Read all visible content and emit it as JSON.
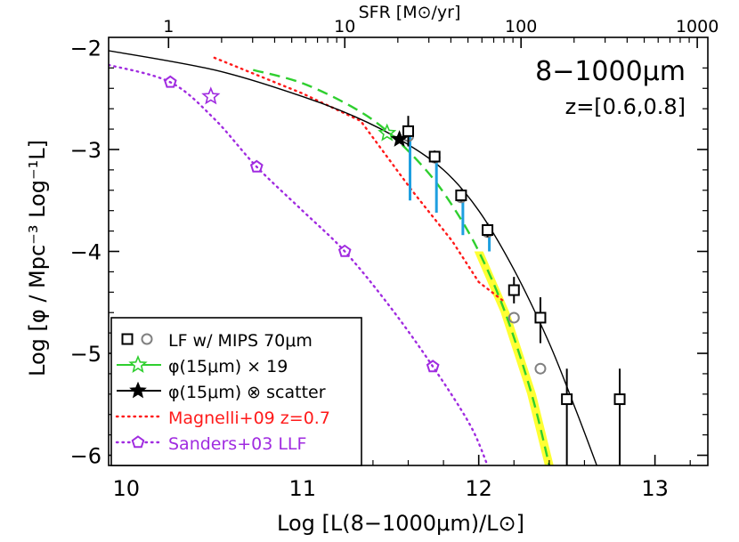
{
  "chart_data": {
    "type": "line",
    "title": "8−1000μm",
    "subtitle": "z=[0.6,0.8]",
    "xlabel": "Log [L(8−1000μm)/L⊙]",
    "ylabel": "Log [φ / Mpc⁻³ Log⁻¹L]",
    "x2label": "SFR [M⊙/yr]",
    "xlim": [
      9.9,
      13.3
    ],
    "ylim": [
      -6.1,
      -1.9
    ],
    "xticks": [
      10,
      11,
      12,
      13
    ],
    "xtick_labels": [
      "10",
      "11",
      "12",
      "13"
    ],
    "yticks": [
      -2,
      -3,
      -4,
      -5,
      -6
    ],
    "ytick_labels": [
      "−2",
      "−3",
      "−4",
      "−5",
      "−6"
    ],
    "x2ticks": [
      {
        "x": 10.24,
        "label": "1"
      },
      {
        "x": 11.24,
        "label": "10"
      },
      {
        "x": 12.24,
        "label": "100"
      },
      {
        "x": 13.24,
        "label": "1000"
      }
    ],
    "legend_position": "bottom-left",
    "colors": {
      "black": "#000000",
      "grey": "#808080",
      "cyan": "#1e9fe0",
      "green": "#2fcf2f",
      "yellow": "#ffff33",
      "red": "#ff1a1a",
      "purple": "#a02be0"
    },
    "series": [
      {
        "key": "mips_lf",
        "name": "LF w/ MIPS 70μm",
        "marker": "open-square",
        "color": "#000000",
        "points": [
          {
            "x": 11.6,
            "y": -2.82,
            "err_up": 0.15,
            "err_down": 0.15
          },
          {
            "x": 11.75,
            "y": -3.07,
            "err_up": 0.06,
            "err_down": 0.06
          },
          {
            "x": 11.9,
            "y": -3.45,
            "err_up": 0.06,
            "err_down": 0.06
          },
          {
            "x": 12.05,
            "y": -3.79,
            "err_up": 0.07,
            "err_down": 0.07
          },
          {
            "x": 12.2,
            "y": -4.38,
            "err_up": 0.13,
            "err_down": 0.13
          },
          {
            "x": 12.35,
            "y": -4.65,
            "err_up": 0.2,
            "err_down": 0.25
          },
          {
            "x": 12.5,
            "y": -5.45,
            "err_up": 0.3,
            "err_down": 0.7
          },
          {
            "x": 12.8,
            "y": -5.45,
            "err_up": 0.3,
            "err_down": 0.7
          }
        ]
      },
      {
        "key": "mips_grey",
        "name": "",
        "marker": "open-circle",
        "color": "#808080",
        "points": [
          {
            "x": 11.6,
            "y": -2.87
          },
          {
            "x": 11.75,
            "y": -3.08
          },
          {
            "x": 11.9,
            "y": -3.47
          },
          {
            "x": 12.05,
            "y": -3.81
          },
          {
            "x": 12.2,
            "y": -4.65
          },
          {
            "x": 12.35,
            "y": -5.15
          }
        ]
      },
      {
        "key": "scatter_err",
        "name": "",
        "marker": "none",
        "color": "#1e9fe0",
        "segments": [
          {
            "x": 11.6,
            "y_top": -2.85,
            "y_bottom": -3.5
          },
          {
            "x": 11.75,
            "y_top": -3.07,
            "y_bottom": -3.62
          },
          {
            "x": 11.9,
            "y_top": -3.45,
            "y_bottom": -3.84
          },
          {
            "x": 12.05,
            "y_top": -3.79,
            "y_bottom": -4.0
          }
        ]
      },
      {
        "key": "phi15",
        "name": "φ(15μm) × 19",
        "marker": "open-star",
        "color": "#2fcf2f",
        "points": [
          {
            "x": 11.48,
            "y": -2.84
          }
        ]
      },
      {
        "key": "phi15_scatter",
        "name": "φ(15μm) ⊗ scatter",
        "marker": "filled-star",
        "color": "#000000",
        "points": [
          {
            "x": 11.55,
            "y": -2.9
          }
        ]
      },
      {
        "key": "magnelli",
        "name": "Magnelli+09 z=0.7",
        "line": "dotted",
        "color": "#ff1a1a",
        "points": [
          {
            "x": 10.5,
            "y": -2.1
          },
          {
            "x": 11.0,
            "y": -2.45
          },
          {
            "x": 11.33,
            "y": -2.72
          },
          {
            "x": 11.62,
            "y": -3.4
          },
          {
            "x": 11.85,
            "y": -3.9
          },
          {
            "x": 12.0,
            "y": -4.3
          },
          {
            "x": 12.15,
            "y": -4.5
          }
        ]
      },
      {
        "key": "sanders",
        "name": "Sanders+03 LLF",
        "marker": "open-pentagon",
        "line": "dotted",
        "color": "#a02be0",
        "points": [
          {
            "x": 10.25,
            "y": -2.34
          },
          {
            "x": 10.74,
            "y": -3.17
          },
          {
            "x": 11.24,
            "y": -4.0
          },
          {
            "x": 11.74,
            "y": -5.13
          }
        ],
        "curve": [
          {
            "x": 9.9,
            "y": -2.17
          },
          {
            "x": 10.25,
            "y": -2.34
          },
          {
            "x": 10.5,
            "y": -2.7
          },
          {
            "x": 10.74,
            "y": -3.17
          },
          {
            "x": 11.0,
            "y": -3.6
          },
          {
            "x": 11.24,
            "y": -4.0
          },
          {
            "x": 11.5,
            "y": -4.55
          },
          {
            "x": 11.74,
            "y": -5.13
          },
          {
            "x": 11.95,
            "y": -5.7
          },
          {
            "x": 12.05,
            "y": -6.1
          }
        ]
      },
      {
        "key": "sanders_star",
        "name": "",
        "marker": "open-star",
        "color": "#a02be0",
        "points": [
          {
            "x": 10.48,
            "y": -2.48
          }
        ]
      },
      {
        "key": "fit_black",
        "name": "",
        "line": "solid",
        "color": "#000000",
        "curve": [
          {
            "x": 9.9,
            "y": -2.03
          },
          {
            "x": 10.5,
            "y": -2.22
          },
          {
            "x": 11.0,
            "y": -2.48
          },
          {
            "x": 11.3,
            "y": -2.68
          },
          {
            "x": 11.55,
            "y": -2.9
          },
          {
            "x": 11.8,
            "y": -3.2
          },
          {
            "x": 12.0,
            "y": -3.6
          },
          {
            "x": 12.2,
            "y": -4.18
          },
          {
            "x": 12.4,
            "y": -4.9
          },
          {
            "x": 12.55,
            "y": -5.55
          },
          {
            "x": 12.67,
            "y": -6.1
          }
        ]
      },
      {
        "key": "fit_green",
        "name": "",
        "line": "dashed",
        "color": "#2fcf2f",
        "band_color": "#ffff33",
        "curve": [
          {
            "x": 10.72,
            "y": -2.22
          },
          {
            "x": 11.0,
            "y": -2.35
          },
          {
            "x": 11.3,
            "y": -2.6
          },
          {
            "x": 11.5,
            "y": -2.85
          },
          {
            "x": 11.7,
            "y": -3.2
          },
          {
            "x": 11.85,
            "y": -3.55
          },
          {
            "x": 12.0,
            "y": -4.0
          },
          {
            "x": 12.15,
            "y": -4.6
          },
          {
            "x": 12.3,
            "y": -5.4
          },
          {
            "x": 12.4,
            "y": -6.1
          }
        ]
      }
    ]
  }
}
